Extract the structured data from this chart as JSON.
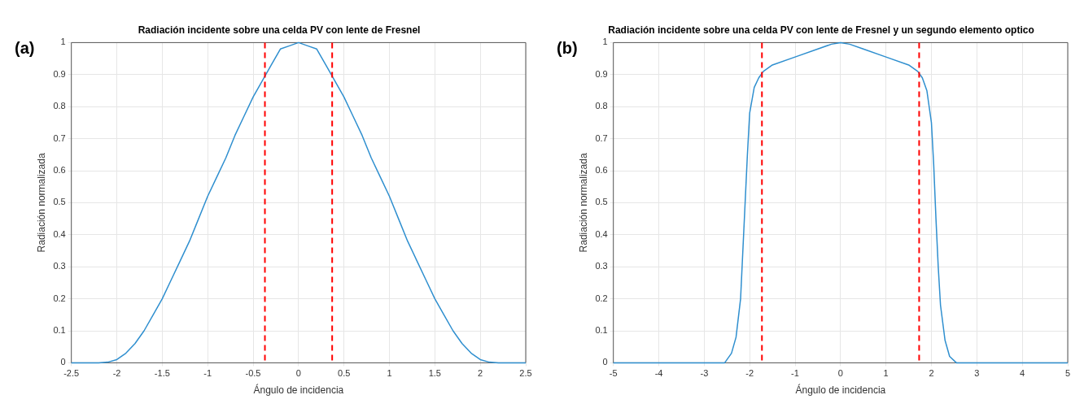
{
  "chart_data": [
    {
      "type": "line",
      "title": "Radiación incidente sobre una celda PV con lente de Fresnel",
      "xlabel": "Ángulo de incidencia",
      "ylabel": "Radiación normalizada",
      "annotations": [
        "(a)"
      ],
      "series": [
        {
          "color": "#2f8fcf",
          "x": [
            -2.5,
            -2.2,
            -2.1,
            -2.0,
            -1.9,
            -1.8,
            -1.7,
            -1.6,
            -1.5,
            -1.4,
            -1.3,
            -1.2,
            -1.1,
            -1.0,
            -0.9,
            -0.8,
            -0.7,
            -0.6,
            -0.5,
            -0.4,
            -0.3,
            -0.2,
            -0.1,
            0,
            0.1,
            0.2,
            0.3,
            0.4,
            0.5,
            0.6,
            0.7,
            0.8,
            0.9,
            1.0,
            1.1,
            1.2,
            1.3,
            1.4,
            1.5,
            1.6,
            1.7,
            1.8,
            1.9,
            2.0,
            2.1,
            2.2,
            2.5
          ],
          "values": [
            0,
            0,
            0.002,
            0.01,
            0.03,
            0.06,
            0.1,
            0.15,
            0.2,
            0.26,
            0.32,
            0.38,
            0.45,
            0.52,
            0.58,
            0.64,
            0.71,
            0.77,
            0.83,
            0.88,
            0.93,
            0.98,
            0.99,
            1,
            0.99,
            0.98,
            0.93,
            0.88,
            0.83,
            0.77,
            0.71,
            0.64,
            0.58,
            0.52,
            0.45,
            0.38,
            0.32,
            0.26,
            0.2,
            0.15,
            0.1,
            0.06,
            0.03,
            0.01,
            0.002,
            0,
            0
          ]
        }
      ],
      "ref_lines": [
        {
          "axis": "x",
          "value": -0.37,
          "color": "#ff0000",
          "line_style": "dashed"
        },
        {
          "axis": "x",
          "value": 0.37,
          "color": "#ff0000",
          "line_style": "dashed"
        }
      ],
      "xlim": [
        -2.5,
        2.5
      ],
      "xticks": [
        -2.5,
        -2,
        -1.5,
        -1,
        -0.5,
        0,
        0.5,
        1,
        1.5,
        2,
        2.5
      ],
      "ylim": [
        0,
        1
      ],
      "yticks": [
        0,
        0.1,
        0.2,
        0.3,
        0.4,
        0.5,
        0.6,
        0.7,
        0.8,
        0.9,
        1
      ],
      "grid": true,
      "legend": false,
      "marker": "none",
      "line_style": "solid"
    },
    {
      "type": "line",
      "title": "Radiación incidente sobre una celda PV con lente de Fresnel y un segundo elemento optico",
      "xlabel": "Ángulo de incidencia",
      "ylabel": "Radiación normalizada",
      "annotations": [
        "(b)"
      ],
      "series": [
        {
          "color": "#2f8fcf",
          "x": [
            -5,
            -2.55,
            -2.4,
            -2.3,
            -2.2,
            -2.15,
            -2.1,
            -2.05,
            -2.0,
            -1.9,
            -1.8,
            -1.7,
            -1.5,
            -1.0,
            -0.5,
            -0.2,
            0,
            0.2,
            0.5,
            1.0,
            1.5,
            1.7,
            1.8,
            1.9,
            2.0,
            2.05,
            2.1,
            2.15,
            2.2,
            2.3,
            2.4,
            2.55,
            5
          ],
          "values": [
            0,
            0,
            0.03,
            0.08,
            0.2,
            0.35,
            0.5,
            0.65,
            0.78,
            0.86,
            0.89,
            0.91,
            0.93,
            0.955,
            0.98,
            0.995,
            1,
            0.995,
            0.98,
            0.955,
            0.93,
            0.91,
            0.89,
            0.85,
            0.75,
            0.62,
            0.45,
            0.3,
            0.18,
            0.07,
            0.02,
            0,
            0
          ]
        }
      ],
      "ref_lines": [
        {
          "axis": "x",
          "value": -1.73,
          "color": "#ff0000",
          "line_style": "dashed"
        },
        {
          "axis": "x",
          "value": 1.73,
          "color": "#ff0000",
          "line_style": "dashed"
        }
      ],
      "xlim": [
        -5,
        5
      ],
      "xticks": [
        -5,
        -4,
        -3,
        -2,
        -1,
        0,
        1,
        2,
        3,
        4,
        5
      ],
      "ylim": [
        0,
        1
      ],
      "yticks": [
        0,
        0.1,
        0.2,
        0.3,
        0.4,
        0.5,
        0.6,
        0.7,
        0.8,
        0.9,
        1
      ],
      "grid": true,
      "legend": false,
      "marker": "none",
      "line_style": "solid"
    }
  ]
}
